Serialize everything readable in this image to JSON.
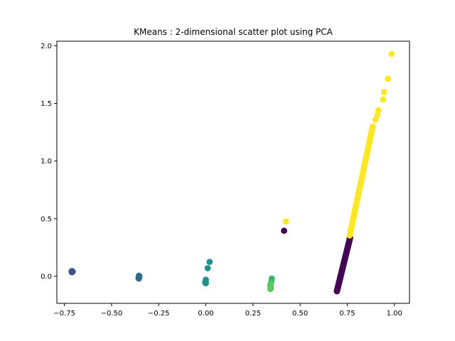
{
  "chart_data": {
    "type": "scatter",
    "title": "KMeans : 2-dimensional scatter plot using PCA",
    "xlabel": "",
    "ylabel": "",
    "xlim": [
      -0.79,
      1.08
    ],
    "ylim": [
      -0.235,
      2.04
    ],
    "xticks": [
      -0.75,
      -0.5,
      -0.25,
      0.0,
      0.25,
      0.5,
      0.75,
      1.0
    ],
    "xtick_labels": [
      "−0.75",
      "−0.50",
      "−0.25",
      "0.00",
      "0.25",
      "0.50",
      "0.75",
      "1.00"
    ],
    "yticks": [
      0.0,
      0.5,
      1.0,
      1.5,
      2.0
    ],
    "ytick_labels": [
      "0.0",
      "0.5",
      "1.0",
      "1.5",
      "2.0"
    ],
    "grid": false,
    "legend": "none",
    "clusters": [
      {
        "color": "#440154",
        "points": [
          [
            0.415,
            0.395
          ],
          {
            "segment": {
              "from": [
                0.695,
                -0.13
              ],
              "to": [
                0.765,
                0.335
              ],
              "count": 90
            }
          }
        ]
      },
      {
        "color": "#3b528b",
        "points": [
          [
            -0.71,
            0.045
          ],
          [
            -0.71,
            0.035
          ],
          [
            -0.706,
            0.04
          ],
          [
            -0.712,
            0.04
          ]
        ]
      },
      {
        "color": "#31688e",
        "points": [
          [
            -0.355,
            0.005
          ],
          [
            -0.355,
            -0.01
          ],
          [
            -0.355,
            -0.02
          ],
          [
            -0.352,
            0.0
          ],
          [
            -0.357,
            -0.015
          ]
        ]
      },
      {
        "color": "#21918c",
        "points": [
          [
            0.02,
            0.125
          ],
          [
            0.01,
            0.07
          ],
          [
            0.0,
            -0.03
          ],
          [
            -0.002,
            -0.045
          ],
          [
            -0.003,
            -0.055
          ],
          [
            0.0,
            -0.06
          ]
        ]
      },
      {
        "color": "#35b779",
        "points": [
          [
            0.35,
            -0.02
          ],
          [
            0.348,
            -0.045
          ],
          [
            0.345,
            -0.06
          ],
          [
            0.343,
            -0.075
          ],
          [
            0.342,
            -0.085
          ],
          [
            0.343,
            -0.1
          ],
          [
            0.345,
            -0.105
          ]
        ]
      },
      {
        "color": "#5ec962",
        "points": [
          [
            0.345,
            -0.065
          ],
          [
            0.343,
            -0.09
          ],
          [
            0.342,
            -0.11
          ]
        ]
      },
      {
        "color": "#fde725",
        "points": [
          [
            0.425,
            0.475
          ],
          [
            0.985,
            1.93
          ],
          [
            0.965,
            1.715
          ],
          [
            0.945,
            1.6
          ],
          [
            0.94,
            1.535
          ],
          [
            0.915,
            1.44
          ],
          [
            0.91,
            1.4
          ],
          [
            0.9,
            1.36
          ],
          {
            "segment": {
              "from": [
                0.763,
                0.355
              ],
              "to": [
                0.885,
                1.3
              ],
              "count": 80
            }
          }
        ]
      }
    ]
  }
}
